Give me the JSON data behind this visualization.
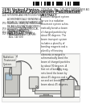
{
  "background_color": "#ffffff",
  "barcode_color": "#111111",
  "text_color": "#333333",
  "divider_color": "#888888",
  "diagram_bg": "#f8f8f6",
  "header_left_line1": "(19) United States",
  "header_left_line2": "(12) Patent Application Publication",
  "header_left_line3": "MacKinnon et al.",
  "header_right_line1": "(10) Pub. No.: US 2013/0058468 A1",
  "header_right_line2": "(43) Pub. Date:    Mar. 7, 2013",
  "meta_items": [
    [
      "(54)",
      "SYSTEMS AND METHODS FOR\nACHROMATICALLY BENDING A\nBEAM OF CHARGED PARTICLES\nBY ABOUT NINETY DEGREES\nDURING RADIATION\nTREATMENT"
    ],
    [
      "(75)",
      "Inventors: Barry A. MacKinnon,\n  Sunnyvale, CA (US);\n  Roger H. Miller,\n  Mountain View, CA (US)"
    ],
    [
      "(73)",
      "Assignee: VARIAN MEDICAL\n  SYSTEMS, INC., Palo\n  Alto, CA (US)"
    ],
    [
      "(21)",
      "Appl. No.: 13/218,641"
    ],
    [
      "(22)",
      "Filed:        Aug. 26, 2011"
    ]
  ],
  "abstract_title": "ABSTRACT",
  "abstract_text": "A beam transport system\nfor use in a radiation\ntreatment system achro-\nmatically bends a beam\nof charged particles by\nabout 90 degrees. The\nbeam transport system\nincludes a plurality of\nbending magnets and a\nplurality of focusing\nelements arranged to\nachromatically bend the\nbeam of charged particles\nby about 90 degrees. A\nfirst set of bending mag-\nnets bend the beam by\nabout 45 degrees and a\nsecond set bends the\nbeam about 45 degrees.",
  "fig_label": "FIG. 1",
  "machine_line_color": "#555555",
  "machine_fill_light": "#dcdcd8",
  "machine_fill_dark": "#b8b8b4"
}
